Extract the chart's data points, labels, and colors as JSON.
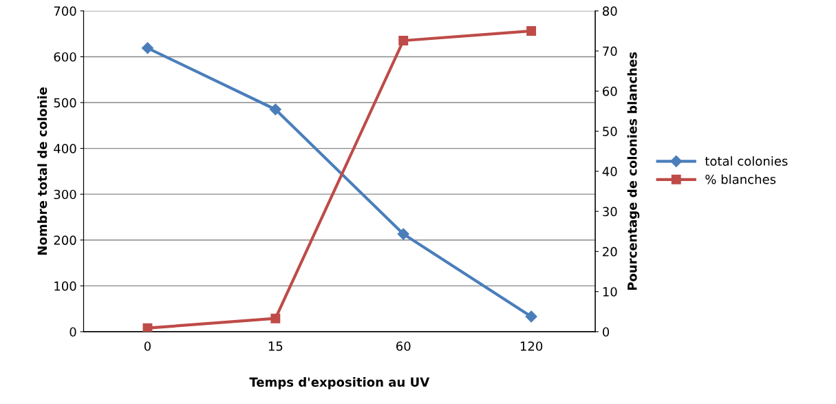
{
  "chart_data": {
    "type": "line",
    "xlabel": "Temps d'exposition au UV",
    "ylabel": "Nombre total de colonie",
    "y2label": "Pourcentage de colonies blanches",
    "categories": [
      "0",
      "15",
      "60",
      "120"
    ],
    "series": [
      {
        "name": "total colonies",
        "color": "#4a7ebb",
        "values": [
          619,
          485,
          213,
          33
        ],
        "marker": "diamond"
      },
      {
        "name": "% blanches",
        "color": "#be4b48",
        "values": [
          0.9,
          3.3,
          72.6,
          75.0
        ],
        "axis": "y2",
        "marker": "square"
      }
    ],
    "ylim": [
      0,
      700
    ],
    "yticks": [
      0,
      100,
      200,
      300,
      400,
      500,
      600,
      700
    ],
    "y2lim": [
      0,
      80
    ],
    "y2ticks": [
      0,
      10,
      20,
      30,
      40,
      50,
      60,
      70,
      80
    ],
    "grid": "y",
    "legend": "right",
    "line_style": "solid"
  }
}
